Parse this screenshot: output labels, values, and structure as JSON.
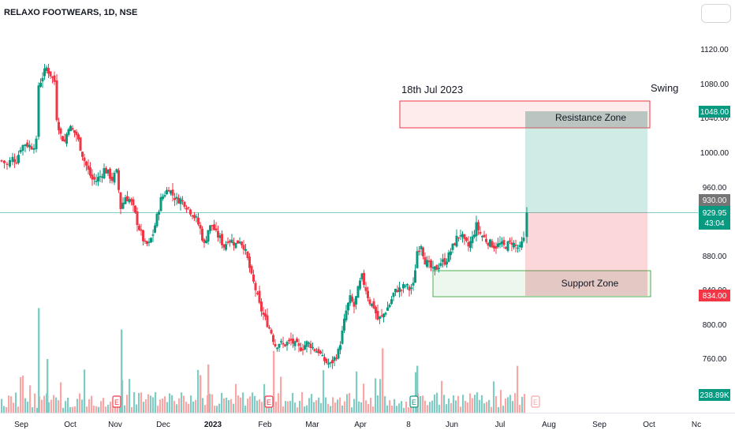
{
  "chart_data": {
    "type": "candlestick",
    "title": "RELAXO FOOTWEARS, 1D, NSE",
    "x_tick_labels": [
      "Sep",
      "Oct",
      "Nov",
      "Dec",
      "2023",
      "Feb",
      "Mar",
      "Apr",
      "8",
      "Jun",
      "Jul",
      "Aug",
      "Sep",
      "Oct",
      "Nc"
    ],
    "y_tick_labels": [
      "1120.00",
      "1080.00",
      "1040.00",
      "1000.00",
      "960.00",
      "880.00",
      "840.00",
      "800.00",
      "760.00"
    ],
    "ylim": [
      740,
      1130
    ],
    "price_path": [
      {
        "x": 0,
        "y": 990
      },
      {
        "x": 7,
        "y": 985
      },
      {
        "x": 14,
        "y": 993
      },
      {
        "x": 19,
        "y": 990
      },
      {
        "x": 24,
        "y": 1005
      },
      {
        "x": 30,
        "y": 1010
      },
      {
        "x": 38,
        "y": 1006
      },
      {
        "x": 44,
        "y": 1012
      },
      {
        "x": 47,
        "y": 1078
      },
      {
        "x": 52,
        "y": 1088
      },
      {
        "x": 57,
        "y": 1098
      },
      {
        "x": 62,
        "y": 1090
      },
      {
        "x": 67,
        "y": 1082
      },
      {
        "x": 70,
        "y": 1040
      },
      {
        "x": 75,
        "y": 1020
      },
      {
        "x": 80,
        "y": 1012
      },
      {
        "x": 85,
        "y": 1030
      },
      {
        "x": 90,
        "y": 1025
      },
      {
        "x": 95,
        "y": 1020
      },
      {
        "x": 100,
        "y": 1005
      },
      {
        "x": 105,
        "y": 990
      },
      {
        "x": 110,
        "y": 978
      },
      {
        "x": 115,
        "y": 968
      },
      {
        "x": 120,
        "y": 967
      },
      {
        "x": 125,
        "y": 972
      },
      {
        "x": 130,
        "y": 980
      },
      {
        "x": 135,
        "y": 976
      },
      {
        "x": 140,
        "y": 968
      },
      {
        "x": 146,
        "y": 977
      },
      {
        "x": 151,
        "y": 935
      },
      {
        "x": 157,
        "y": 948
      },
      {
        "x": 162,
        "y": 945
      },
      {
        "x": 167,
        "y": 935
      },
      {
        "x": 172,
        "y": 918
      },
      {
        "x": 177,
        "y": 905
      },
      {
        "x": 182,
        "y": 892
      },
      {
        "x": 187,
        "y": 893
      },
      {
        "x": 192,
        "y": 905
      },
      {
        "x": 197,
        "y": 925
      },
      {
        "x": 202,
        "y": 945
      },
      {
        "x": 207,
        "y": 952
      },
      {
        "x": 212,
        "y": 958
      },
      {
        "x": 217,
        "y": 950
      },
      {
        "x": 222,
        "y": 945
      },
      {
        "x": 227,
        "y": 945
      },
      {
        "x": 232,
        "y": 940
      },
      {
        "x": 237,
        "y": 935
      },
      {
        "x": 242,
        "y": 928
      },
      {
        "x": 247,
        "y": 922
      },
      {
        "x": 252,
        "y": 910
      },
      {
        "x": 257,
        "y": 892
      },
      {
        "x": 262,
        "y": 910
      },
      {
        "x": 267,
        "y": 915
      },
      {
        "x": 272,
        "y": 905
      },
      {
        "x": 277,
        "y": 900
      },
      {
        "x": 282,
        "y": 890
      },
      {
        "x": 287,
        "y": 898
      },
      {
        "x": 292,
        "y": 897
      },
      {
        "x": 297,
        "y": 893
      },
      {
        "x": 302,
        "y": 898
      },
      {
        "x": 307,
        "y": 890
      },
      {
        "x": 312,
        "y": 875
      },
      {
        "x": 317,
        "y": 855
      },
      {
        "x": 322,
        "y": 840
      },
      {
        "x": 327,
        "y": 822
      },
      {
        "x": 332,
        "y": 810
      },
      {
        "x": 337,
        "y": 800
      },
      {
        "x": 342,
        "y": 790
      },
      {
        "x": 347,
        "y": 775
      },
      {
        "x": 352,
        "y": 778
      },
      {
        "x": 357,
        "y": 775
      },
      {
        "x": 362,
        "y": 778
      },
      {
        "x": 367,
        "y": 780
      },
      {
        "x": 372,
        "y": 776
      },
      {
        "x": 377,
        "y": 772
      },
      {
        "x": 382,
        "y": 773
      },
      {
        "x": 387,
        "y": 778
      },
      {
        "x": 392,
        "y": 775
      },
      {
        "x": 397,
        "y": 770
      },
      {
        "x": 402,
        "y": 768
      },
      {
        "x": 407,
        "y": 760
      },
      {
        "x": 412,
        "y": 755
      },
      {
        "x": 417,
        "y": 753
      },
      {
        "x": 422,
        "y": 760
      },
      {
        "x": 427,
        "y": 768
      },
      {
        "x": 432,
        "y": 790
      },
      {
        "x": 437,
        "y": 815
      },
      {
        "x": 442,
        "y": 830
      },
      {
        "x": 447,
        "y": 820
      },
      {
        "x": 452,
        "y": 840
      },
      {
        "x": 457,
        "y": 855
      },
      {
        "x": 462,
        "y": 840
      },
      {
        "x": 467,
        "y": 825
      },
      {
        "x": 472,
        "y": 820
      },
      {
        "x": 477,
        "y": 805
      },
      {
        "x": 482,
        "y": 808
      },
      {
        "x": 487,
        "y": 815
      },
      {
        "x": 492,
        "y": 823
      },
      {
        "x": 497,
        "y": 835
      },
      {
        "x": 502,
        "y": 840
      },
      {
        "x": 507,
        "y": 840
      },
      {
        "x": 512,
        "y": 845
      },
      {
        "x": 517,
        "y": 840
      },
      {
        "x": 522,
        "y": 845
      },
      {
        "x": 527,
        "y": 885
      },
      {
        "x": 532,
        "y": 893
      },
      {
        "x": 537,
        "y": 873
      },
      {
        "x": 542,
        "y": 868
      },
      {
        "x": 547,
        "y": 862
      },
      {
        "x": 552,
        "y": 865
      },
      {
        "x": 557,
        "y": 872
      },
      {
        "x": 562,
        "y": 872
      },
      {
        "x": 567,
        "y": 880
      },
      {
        "x": 572,
        "y": 890
      },
      {
        "x": 577,
        "y": 900
      },
      {
        "x": 582,
        "y": 905
      },
      {
        "x": 587,
        "y": 895
      },
      {
        "x": 592,
        "y": 890
      },
      {
        "x": 597,
        "y": 900
      },
      {
        "x": 602,
        "y": 915
      },
      {
        "x": 607,
        "y": 905
      },
      {
        "x": 612,
        "y": 900
      },
      {
        "x": 617,
        "y": 895
      },
      {
        "x": 622,
        "y": 892
      },
      {
        "x": 627,
        "y": 890
      },
      {
        "x": 632,
        "y": 893
      },
      {
        "x": 637,
        "y": 890
      },
      {
        "x": 642,
        "y": 893
      },
      {
        "x": 647,
        "y": 895
      },
      {
        "x": 652,
        "y": 890
      },
      {
        "x": 657,
        "y": 888
      },
      {
        "x": 662,
        "y": 898
      },
      {
        "x": 666,
        "y": 930
      }
    ],
    "volume_spikes": [
      {
        "x": 47,
        "k": "up",
        "h": 0.78
      },
      {
        "x": 152,
        "k": "up",
        "h": 0.62
      },
      {
        "x": 262,
        "k": "down",
        "h": 0.36
      },
      {
        "x": 345,
        "k": "down",
        "h": 0.46
      },
      {
        "x": 483,
        "k": "down",
        "h": 0.48
      },
      {
        "x": 527,
        "k": "up",
        "h": 0.35
      },
      {
        "x": 58,
        "k": "up",
        "h": 0.4
      },
      {
        "x": 252,
        "k": "down",
        "h": 0.28
      }
    ],
    "current_price": "929.95",
    "countdown": "43:04",
    "volume_label": "238.89K",
    "zones": [
      {
        "label": "Resistance Zone",
        "y_low": 1032,
        "y_high": 1056
      },
      {
        "label": "Support Zone",
        "y_low": 831,
        "y_high": 861
      }
    ],
    "position": {
      "entry": 930,
      "target": 1048,
      "stop": 834
    },
    "price_tags": [
      {
        "text": "1048.00",
        "y": 1044,
        "color": "#089981"
      },
      {
        "text": "930.00",
        "y": 957,
        "color": "#757575"
      },
      {
        "text": "834.00",
        "y": 834,
        "color": "#f23645"
      }
    ],
    "annotations": [
      "18th Jul 2023",
      "Swing"
    ],
    "colors": {
      "up": "#089981",
      "down": "#f23645",
      "vol_up": "#80cbc4",
      "vol_down": "#f7a8a6"
    },
    "grid": false
  }
}
